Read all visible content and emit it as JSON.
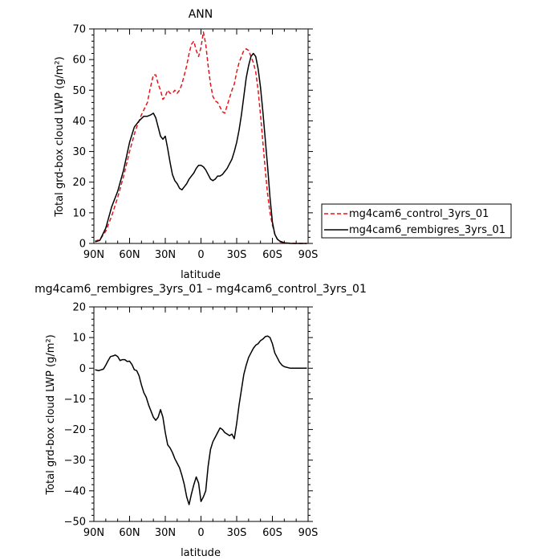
{
  "chart_data": [
    {
      "type": "line",
      "title": "ANN",
      "xlabel": "latitude",
      "ylabel": "Total grd-box cloud LWP (g/m²)",
      "xlim": [
        -90,
        90
      ],
      "ylim": [
        0,
        70
      ],
      "x_ticks": [
        -90,
        -60,
        -30,
        0,
        30,
        60,
        90
      ],
      "x_tick_labels": [
        "90N",
        "60N",
        "30N",
        "0",
        "30S",
        "60S",
        "90S"
      ],
      "y_ticks": [
        0,
        10,
        20,
        30,
        40,
        50,
        60,
        70
      ],
      "y_tick_labels": [
        "0",
        "10",
        "20",
        "30",
        "40",
        "50",
        "60",
        "70"
      ],
      "grid": false,
      "legend_position": "right",
      "series": [
        {
          "name": "mg4cam6_control_3yrs_01",
          "color": "#e8141c",
          "dash": "dashed",
          "x": [
            -89,
            -85,
            -80,
            -75,
            -70,
            -65,
            -60,
            -55,
            -50,
            -45,
            -43,
            -40,
            -38,
            -36,
            -34,
            -32,
            -30,
            -28,
            -26,
            -24,
            -22,
            -20,
            -18,
            -16,
            -14,
            -12,
            -10,
            -8,
            -6,
            -4,
            -2,
            0,
            2,
            4,
            6,
            8,
            10,
            12,
            14,
            16,
            18,
            20,
            22,
            24,
            26,
            28,
            30,
            32,
            34,
            36,
            38,
            40,
            42,
            44,
            46,
            48,
            50,
            52,
            54,
            56,
            58,
            60,
            62,
            64,
            66,
            70,
            75,
            80,
            85,
            89
          ],
          "y": [
            0.8,
            1.2,
            4,
            9,
            15,
            22,
            30,
            37,
            42,
            46,
            50,
            55,
            55,
            52,
            50,
            47,
            48,
            50,
            49,
            49,
            50,
            49,
            50,
            52,
            55,
            58,
            62,
            65,
            66,
            63,
            61,
            64,
            69,
            65,
            58,
            52,
            48,
            46.5,
            46,
            44.5,
            43,
            42.5,
            45,
            47.5,
            50,
            52,
            56,
            59,
            61,
            63,
            63.5,
            63,
            61,
            59,
            56,
            50,
            42,
            33,
            24,
            16,
            10,
            6,
            3.2,
            1.5,
            0.5,
            0.2,
            0.1,
            0,
            0,
            0
          ]
        },
        {
          "name": "mg4cam6_rembigres_3yrs_01",
          "color": "#000000",
          "dash": "solid",
          "x": [
            -89,
            -85,
            -80,
            -75,
            -70,
            -65,
            -60,
            -56,
            -52,
            -48,
            -45,
            -42,
            -40,
            -38,
            -36,
            -34,
            -32,
            -30,
            -28,
            -26,
            -24,
            -22,
            -20,
            -18,
            -16,
            -14,
            -12,
            -10,
            -8,
            -6,
            -4,
            -2,
            0,
            2,
            4,
            6,
            8,
            10,
            12,
            14,
            16,
            18,
            20,
            22,
            24,
            26,
            28,
            30,
            32,
            34,
            36,
            38,
            40,
            42,
            44,
            46,
            48,
            50,
            52,
            54,
            56,
            58,
            60,
            62,
            64,
            66,
            70,
            75,
            80,
            85,
            89
          ],
          "y": [
            0.5,
            1,
            5,
            12,
            17,
            24,
            33,
            38,
            40,
            41.5,
            41.5,
            42,
            42.5,
            41,
            38,
            35,
            34,
            35,
            31,
            26.5,
            22.5,
            20.5,
            19.5,
            18,
            17.5,
            18.5,
            19.5,
            21,
            22,
            23,
            24.5,
            25.5,
            25.5,
            25,
            24,
            22.5,
            21,
            20.5,
            21,
            22,
            22,
            22.5,
            23.5,
            24.5,
            26,
            27.5,
            30,
            33,
            37,
            42,
            48,
            54,
            58,
            61,
            62,
            61,
            57,
            51,
            43,
            34,
            25,
            15,
            7,
            3,
            1.5,
            0.8,
            0.2,
            0,
            0,
            0,
            0
          ]
        }
      ]
    },
    {
      "type": "line",
      "title": "mg4cam6_rembigres_3yrs_01 – mg4cam6_control_3yrs_01",
      "xlabel": "latitude",
      "ylabel": "Total grd-box cloud LWP (g/m²)",
      "xlim": [
        -90,
        90
      ],
      "ylim": [
        -50,
        20
      ],
      "x_ticks": [
        -90,
        -60,
        -30,
        0,
        30,
        60,
        90
      ],
      "x_tick_labels": [
        "90N",
        "60N",
        "30N",
        "0",
        "30S",
        "60S",
        "90S"
      ],
      "y_ticks": [
        -50,
        -40,
        -30,
        -20,
        -10,
        0,
        10,
        20
      ],
      "y_tick_labels": [
        "−50",
        "−40",
        "−30",
        "−20",
        "−10",
        "0",
        "10",
        "20"
      ],
      "grid": false,
      "series": [
        {
          "color": "#000000",
          "dash": "solid",
          "x": [
            -89,
            -86,
            -82,
            -80,
            -78,
            -76,
            -74,
            -72,
            -70,
            -68,
            -66,
            -64,
            -62,
            -60,
            -58,
            -56,
            -54,
            -52,
            -50,
            -48,
            -46,
            -44,
            -42,
            -40,
            -38,
            -36,
            -34,
            -32,
            -30,
            -28,
            -26,
            -24,
            -22,
            -20,
            -18,
            -16,
            -14,
            -12,
            -10,
            -8,
            -6,
            -4,
            -2,
            0,
            2,
            4,
            6,
            8,
            10,
            12,
            14,
            16,
            18,
            20,
            22,
            24,
            26,
            28,
            30,
            32,
            34,
            36,
            38,
            40,
            42,
            44,
            46,
            48,
            50,
            52,
            54,
            56,
            58,
            60,
            62,
            64,
            66,
            68,
            70,
            75,
            80,
            85,
            89
          ],
          "y": [
            -0.5,
            -0.8,
            -0.3,
            1,
            2.5,
            3.8,
            4,
            4.3,
            3.8,
            2.5,
            2.8,
            2.8,
            2.2,
            2.3,
            1.2,
            -0.5,
            -0.8,
            -2.5,
            -5.5,
            -8,
            -9.5,
            -12,
            -14,
            -16,
            -17,
            -16,
            -13.5,
            -16,
            -21,
            -25,
            -26,
            -27.5,
            -29.5,
            -31,
            -32.5,
            -35,
            -38,
            -42,
            -44.5,
            -41,
            -38,
            -35.5,
            -37.5,
            -43.5,
            -42,
            -40,
            -32,
            -26.5,
            -24,
            -22.5,
            -21,
            -19.5,
            -20,
            -21,
            -21.5,
            -22,
            -21.5,
            -23,
            -18,
            -12,
            -7,
            -2,
            1,
            3.5,
            5,
            6.5,
            7.5,
            8,
            9,
            9.5,
            10.3,
            10.5,
            10,
            8,
            5,
            3.5,
            2,
            1,
            0.5,
            0,
            0,
            0,
            0
          ]
        }
      ]
    }
  ]
}
